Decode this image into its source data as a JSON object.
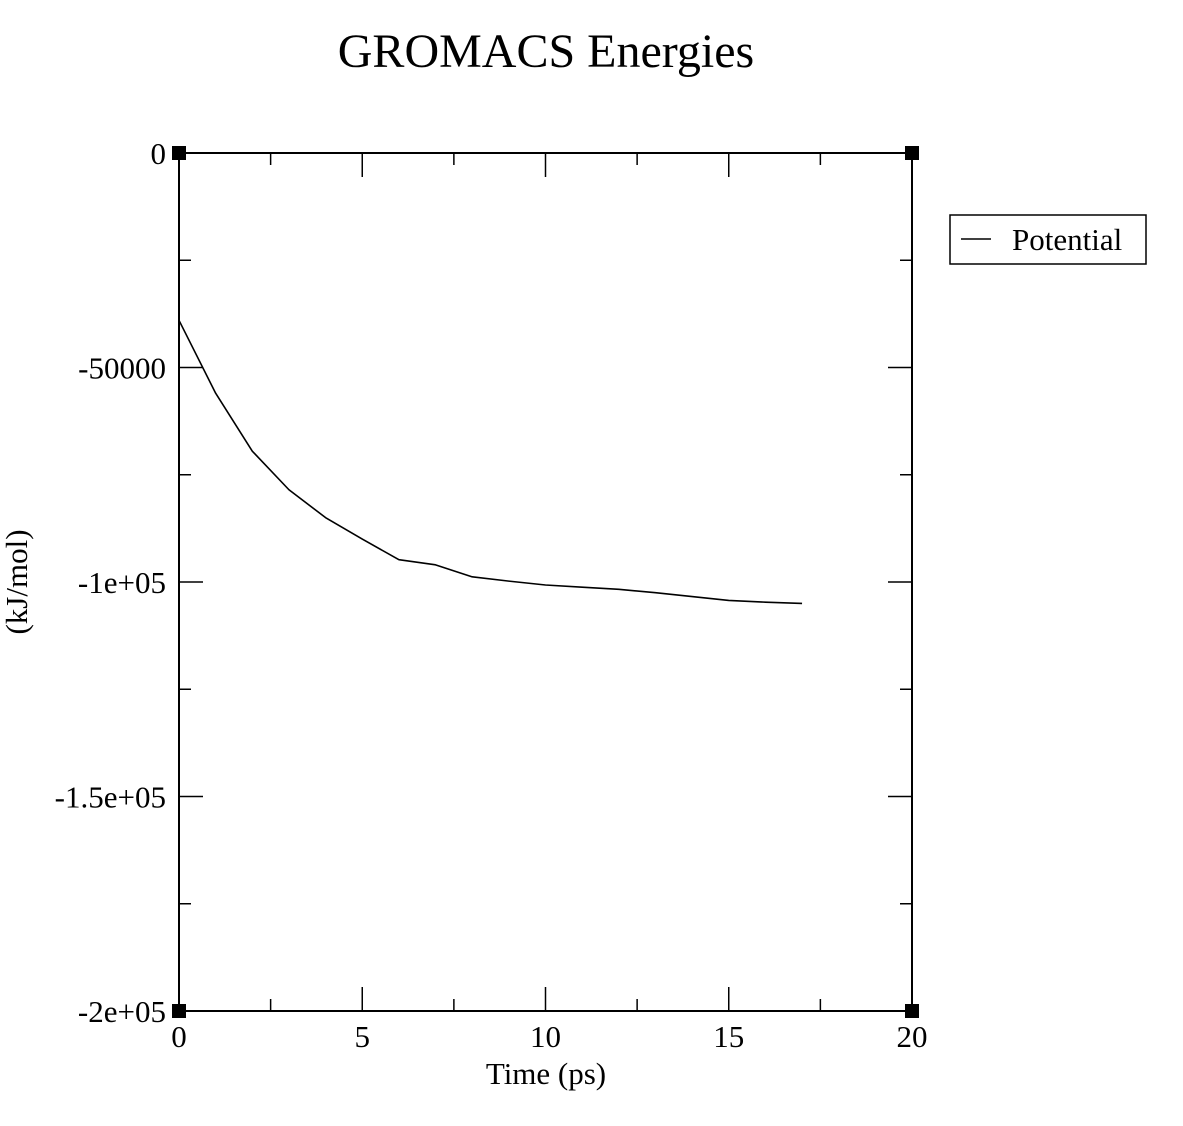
{
  "chart_data": {
    "type": "line",
    "title": "GROMACS Energies",
    "xlabel": "Time (ps)",
    "ylabel": "(kJ/mol)",
    "xlim": [
      0,
      20
    ],
    "ylim": [
      -200000,
      0
    ],
    "x_ticks": [
      0,
      5,
      10,
      15,
      20
    ],
    "x_tick_labels": [
      "0",
      "5",
      "10",
      "15",
      "20"
    ],
    "y_ticks": [
      0,
      -50000,
      -100000,
      -150000,
      -200000
    ],
    "y_tick_labels": [
      "0",
      "-50000",
      "-1e+05",
      "-1.5e+05",
      "-2e+05"
    ],
    "grid": false,
    "legend_position": "top-right",
    "series": [
      {
        "name": "Potential",
        "color": "#000000",
        "x": [
          0,
          1,
          2,
          3,
          4,
          5,
          6,
          7,
          8,
          9,
          10,
          11,
          12,
          13,
          14,
          15,
          16,
          17
        ],
        "y": [
          -39000,
          -56000,
          -69500,
          -78500,
          -85000,
          -90000,
          -94800,
          -96000,
          -98800,
          -99800,
          -100700,
          -101200,
          -101700,
          -102500,
          -103400,
          -104300,
          -104700,
          -105000
        ]
      }
    ]
  }
}
